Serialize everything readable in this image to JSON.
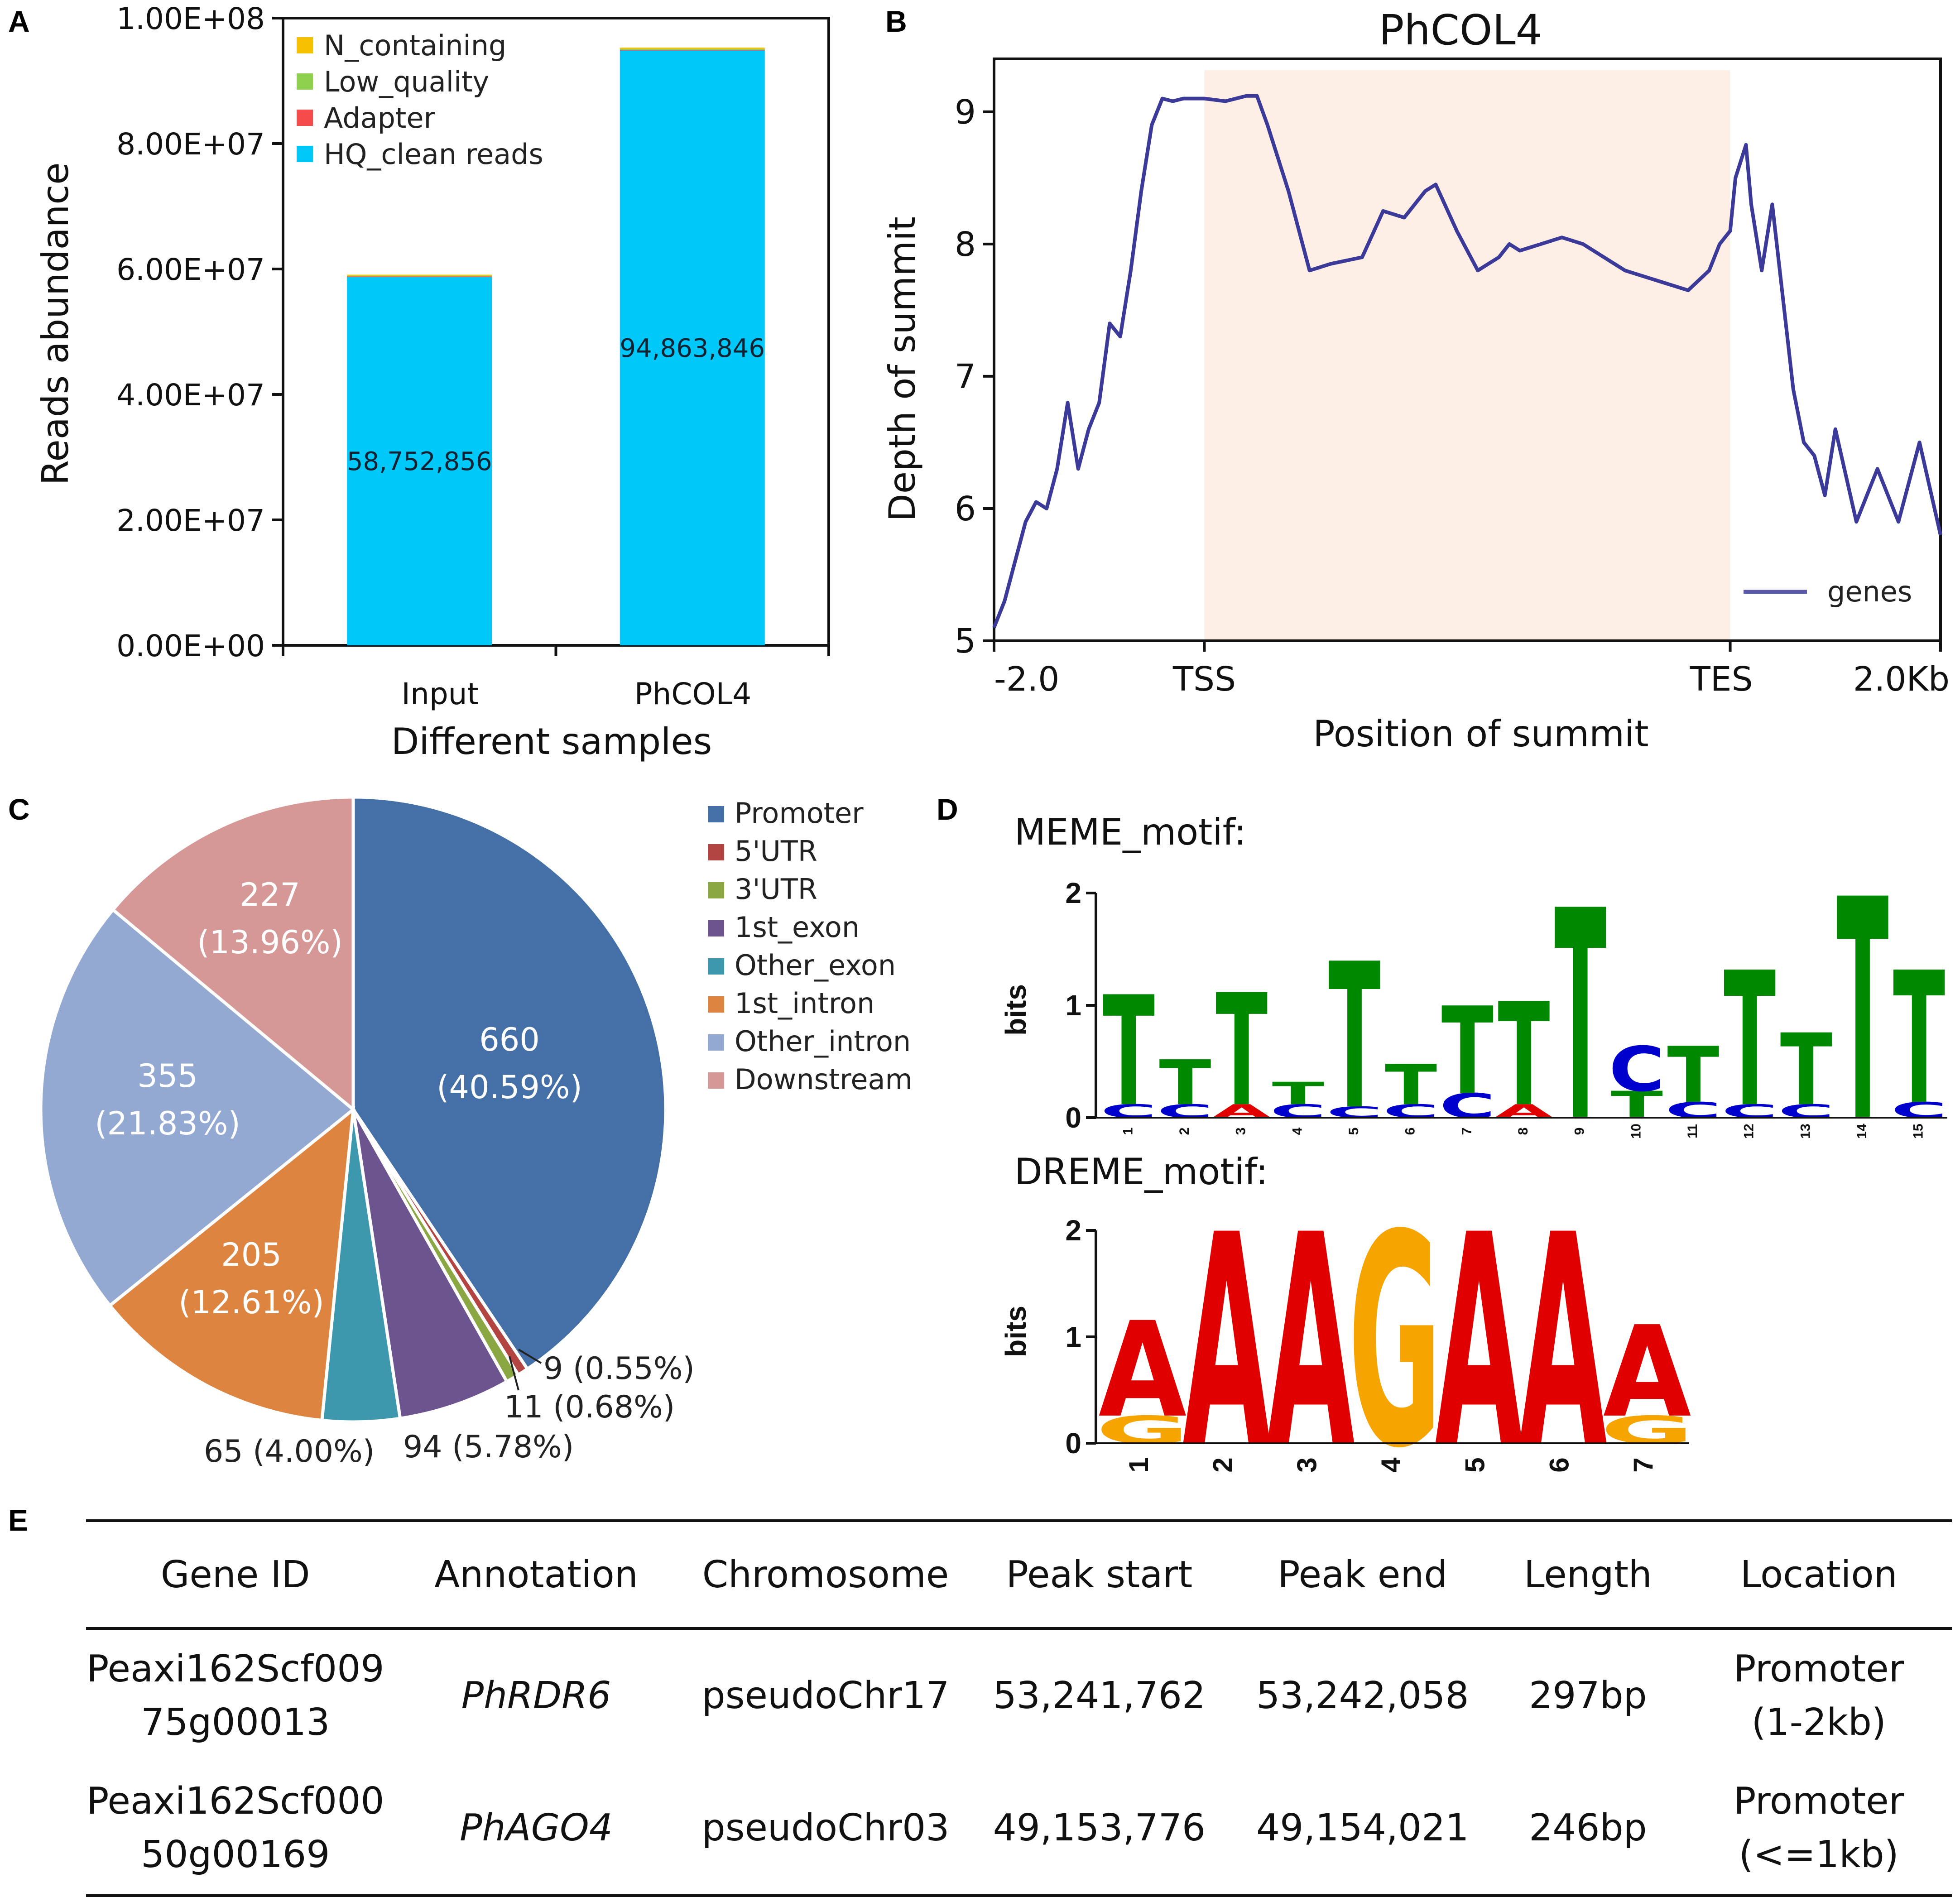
{
  "panels": {
    "a": "A",
    "b": "B",
    "c": "C",
    "d": "D",
    "e": "E"
  },
  "chart_data": [
    {
      "panel": "A",
      "type": "bar",
      "stacked": true,
      "xlabel": "Different samples",
      "ylabel": "Reads abundance",
      "ylim": [
        0,
        100000000
      ],
      "yticks": [
        "0.00E+00",
        "2.00E+07",
        "4.00E+07",
        "6.00E+07",
        "8.00E+07",
        "1.00E+08"
      ],
      "categories": [
        "Input",
        "PhCOL4"
      ],
      "series": [
        {
          "name": "HQ_clean reads",
          "color": "#00c8f8",
          "values": [
            58752856,
            94863846
          ]
        },
        {
          "name": "Adapter",
          "color": "#f54b4b",
          "values": [
            60000,
            80000
          ]
        },
        {
          "name": "Low_quality",
          "color": "#8fd14f",
          "values": [
            120000,
            150000
          ]
        },
        {
          "name": "N_containing",
          "color": "#f5c000",
          "values": [
            160000,
            200000
          ]
        }
      ],
      "bar_labels": [
        "58,752,856",
        "94,863,846"
      ],
      "legend_order": [
        "N_containing",
        "Low_quality",
        "Adapter",
        "HQ_clean reads"
      ]
    },
    {
      "panel": "B",
      "type": "line",
      "title": "PhCOL4",
      "xlabel": "Position of summit",
      "ylabel": "Depth of summit",
      "xlim": [
        -2,
        7
      ],
      "ylim": [
        5,
        9.4
      ],
      "yticks": [
        5,
        6,
        7,
        8,
        9
      ],
      "xticks": [
        {
          "x": -2,
          "label": "-2.0"
        },
        {
          "x": 0,
          "label": "TSS"
        },
        {
          "x": 5,
          "label": "TES"
        },
        {
          "x": 7,
          "label": "2.0Kb"
        }
      ],
      "shaded_region": [
        0,
        5
      ],
      "shade_color": "#fdefe6",
      "line_color": "#3b3a98",
      "series": [
        {
          "name": "genes",
          "x": [
            -2,
            -1.9,
            -1.8,
            -1.7,
            -1.6,
            -1.5,
            -1.4,
            -1.3,
            -1.2,
            -1.1,
            -1.0,
            -0.9,
            -0.8,
            -0.7,
            -0.6,
            -0.5,
            -0.4,
            -0.3,
            -0.2,
            -0.1,
            0.0,
            0.2,
            0.4,
            0.5,
            0.6,
            0.8,
            1.0,
            1.2,
            1.5,
            1.7,
            1.9,
            2.1,
            2.2,
            2.4,
            2.6,
            2.8,
            2.9,
            3.0,
            3.2,
            3.4,
            3.6,
            3.8,
            4.0,
            4.2,
            4.4,
            4.6,
            4.8,
            4.9,
            5.0,
            5.05,
            5.15,
            5.2,
            5.3,
            5.4,
            5.5,
            5.6,
            5.7,
            5.8,
            5.9,
            6.0,
            6.2,
            6.4,
            6.6,
            6.8,
            7.0
          ],
          "y": [
            5.1,
            5.3,
            5.6,
            5.9,
            6.05,
            6.0,
            6.3,
            6.8,
            6.3,
            6.6,
            6.8,
            7.4,
            7.3,
            7.8,
            8.4,
            8.9,
            9.1,
            9.08,
            9.1,
            9.1,
            9.1,
            9.08,
            9.12,
            9.12,
            8.9,
            8.4,
            7.8,
            7.85,
            7.9,
            8.25,
            8.2,
            8.4,
            8.45,
            8.1,
            7.8,
            7.9,
            8.0,
            7.95,
            8.0,
            8.05,
            8.0,
            7.9,
            7.8,
            7.75,
            7.7,
            7.65,
            7.8,
            8.0,
            8.1,
            8.5,
            8.75,
            8.3,
            7.8,
            8.3,
            7.6,
            6.9,
            6.5,
            6.4,
            6.1,
            6.6,
            5.9,
            6.3,
            5.9,
            6.5,
            5.8
          ]
        }
      ],
      "legend": "genes"
    },
    {
      "panel": "C",
      "type": "pie",
      "slices": [
        {
          "name": "Promoter",
          "value": 660,
          "pct": "40.59%",
          "color": "#4470a7"
        },
        {
          "name": "5'UTR",
          "value": 9,
          "pct": "0.55%",
          "color": "#b24441"
        },
        {
          "name": "3'UTR",
          "value": 11,
          "pct": "0.68%",
          "color": "#8aa744"
        },
        {
          "name": "1st_exon",
          "value": 94,
          "pct": "5.78%",
          "color": "#6c558f"
        },
        {
          "name": "Other_exon",
          "value": 65,
          "pct": "4.00%",
          "color": "#3e98ad"
        },
        {
          "name": "1st_intron",
          "value": 205,
          "pct": "12.61%",
          "color": "#dc8440"
        },
        {
          "name": "Other_intron",
          "value": 355,
          "pct": "21.83%",
          "color": "#93a9d1"
        },
        {
          "name": "Downstream",
          "value": 227,
          "pct": "13.96%",
          "color": "#d69896"
        }
      ],
      "labels": {
        "promoter": [
          "660",
          "(40.59%)"
        ],
        "utr5": "9 (0.55%)",
        "utr3": "11 (0.68%)",
        "exon1": "94 (5.78%)",
        "exon_other": "65 (4.00%)",
        "intron1": [
          "205",
          "(12.61%)"
        ],
        "intron_other": [
          "355",
          "(21.83%)"
        ],
        "downstream": [
          "227",
          "(13.96%)"
        ]
      }
    },
    {
      "panel": "D",
      "type": "sequence_logo",
      "logos": [
        {
          "title": "MEME_motif:",
          "ylabel": "bits",
          "ylim": [
            0,
            2
          ],
          "yticks": [
            "0",
            "1",
            "2"
          ],
          "positions": [
            {
              "pos": "1",
              "stack": [
                [
                  "C",
                  0.12
                ],
                [
                  "T",
                  0.98
                ]
              ]
            },
            {
              "pos": "2",
              "stack": [
                [
                  "C",
                  0.12
                ],
                [
                  "T",
                  0.4
                ]
              ]
            },
            {
              "pos": "3",
              "stack": [
                [
                  "A",
                  0.12
                ],
                [
                  "T",
                  1.0
                ]
              ]
            },
            {
              "pos": "4",
              "stack": [
                [
                  "C",
                  0.12
                ],
                [
                  "T",
                  0.2
                ]
              ]
            },
            {
              "pos": "5",
              "stack": [
                [
                  "C",
                  0.1
                ],
                [
                  "T",
                  1.3
                ]
              ]
            },
            {
              "pos": "6",
              "stack": [
                [
                  "C",
                  0.12
                ],
                [
                  "T",
                  0.36
                ]
              ]
            },
            {
              "pos": "7",
              "stack": [
                [
                  "C",
                  0.22
                ],
                [
                  "T",
                  0.78
                ]
              ]
            },
            {
              "pos": "8",
              "stack": [
                [
                  "A",
                  0.12
                ],
                [
                  "T",
                  0.92
                ]
              ]
            },
            {
              "pos": "9",
              "stack": [
                [
                  "T",
                  1.88
                ]
              ]
            },
            {
              "pos": "10",
              "stack": [
                [
                  "T",
                  0.24
                ],
                [
                  "C",
                  0.4
                ]
              ]
            },
            {
              "pos": "11",
              "stack": [
                [
                  "C",
                  0.14
                ],
                [
                  "T",
                  0.5
                ]
              ]
            },
            {
              "pos": "12",
              "stack": [
                [
                  "C",
                  0.12
                ],
                [
                  "T",
                  1.2
                ]
              ]
            },
            {
              "pos": "13",
              "stack": [
                [
                  "C",
                  0.12
                ],
                [
                  "T",
                  0.64
                ]
              ]
            },
            {
              "pos": "14",
              "stack": [
                [
                  "T",
                  1.98
                ]
              ]
            },
            {
              "pos": "15",
              "stack": [
                [
                  "C",
                  0.14
                ],
                [
                  "T",
                  1.18
                ]
              ]
            }
          ]
        },
        {
          "title": "DREME_motif:",
          "ylabel": "bits",
          "ylim": [
            0,
            2
          ],
          "yticks": [
            "0",
            "1",
            "2"
          ],
          "positions": [
            {
              "pos": "1",
              "stack": [
                [
                  "G",
                  0.26
                ],
                [
                  "A",
                  0.9
                ]
              ]
            },
            {
              "pos": "2",
              "stack": [
                [
                  "A",
                  2.0
                ]
              ]
            },
            {
              "pos": "3",
              "stack": [
                [
                  "A",
                  2.0
                ]
              ]
            },
            {
              "pos": "4",
              "stack": [
                [
                  "G",
                  2.0
                ]
              ]
            },
            {
              "pos": "5",
              "stack": [
                [
                  "A",
                  2.0
                ]
              ]
            },
            {
              "pos": "6",
              "stack": [
                [
                  "A",
                  2.0
                ]
              ]
            },
            {
              "pos": "7",
              "stack": [
                [
                  "G",
                  0.26
                ],
                [
                  "A",
                  0.86
                ]
              ]
            }
          ]
        }
      ],
      "letter_colors": {
        "A": "#e00000",
        "C": "#0000cc",
        "G": "#f5a400",
        "T": "#008800"
      }
    },
    {
      "panel": "E",
      "type": "table",
      "columns": [
        "Gene ID",
        "Annotation",
        "Chromosome",
        "Peak start",
        "Peak end",
        "Length",
        "Location"
      ],
      "rows": [
        {
          "gene_id": [
            "Peaxi162Scf009",
            "75g00013"
          ],
          "annotation": "PhRDR6",
          "chromosome": "pseudoChr17",
          "peak_start": "53,241,762",
          "peak_end": "53,242,058",
          "length": "297bp",
          "location": [
            "Promoter",
            "(1-2kb)"
          ]
        },
        {
          "gene_id": [
            "Peaxi162Scf000",
            "50g00169"
          ],
          "annotation": "PhAGO4",
          "chromosome": "pseudoChr03",
          "peak_start": "49,153,776",
          "peak_end": "49,154,021",
          "length": "246bp",
          "location": [
            "Promoter",
            "(<=1kb)"
          ]
        }
      ]
    }
  ]
}
